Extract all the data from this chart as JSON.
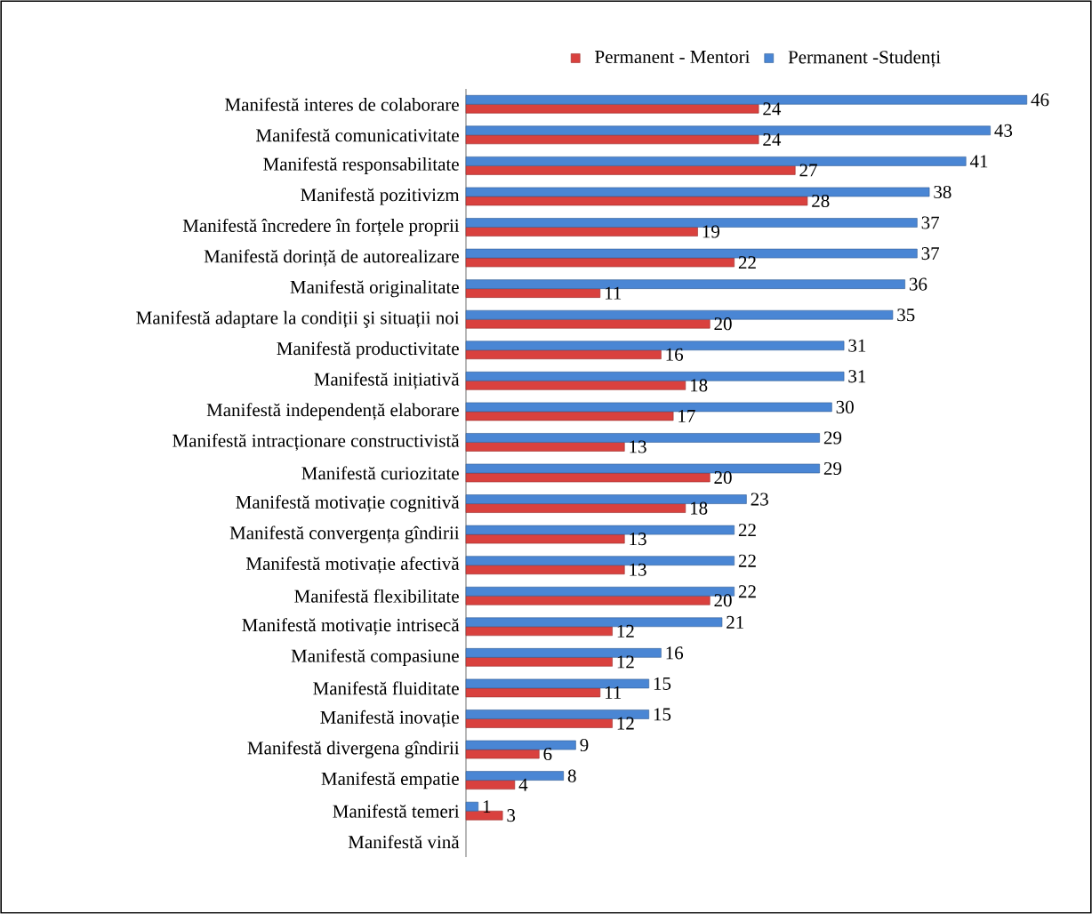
{
  "chart_data": {
    "type": "bar",
    "orientation": "horizontal",
    "data_labels": true,
    "legend": "top",
    "categories": [
      "Manifestă interes de colaborare",
      "Manifestă comunicativitate",
      "Manifestă responsabilitate",
      "Manifestă pozitivizm",
      "Manifestă încredere în forțele proprii",
      "Manifestă dorință de autorealizare",
      "Manifestă originalitate",
      "Manifestă adaptare la condiții şi situații noi",
      "Manifestă productivitate",
      "Manifestă inițiativă",
      "Manifestă independență elaborare",
      "Manifestă intracționare constructivistă",
      "Manifestă curiozitate",
      "Manifestă motivație cognitivă",
      "Manifestă convergența gîndirii",
      "Manifestă motivație afectivă",
      "Manifestă flexibilitate",
      "Manifestă motivație intrisecă",
      "Manifestă compasiune",
      "Manifestă fluiditate",
      "Manifestă inovație",
      "Manifestă divergena gîndirii",
      "Manifestă empatie",
      "Manifestă temeri",
      "Manifestă vină"
    ],
    "series": [
      {
        "name": "Permanent - Mentori",
        "color": "#d9413e",
        "values": [
          24,
          24,
          27,
          28,
          19,
          22,
          11,
          20,
          16,
          18,
          17,
          13,
          20,
          18,
          13,
          13,
          20,
          12,
          12,
          11,
          12,
          6,
          4,
          3,
          null
        ]
      },
      {
        "name": "Permanent -Studenți",
        "color": "#4a86d4",
        "values": [
          46,
          43,
          41,
          38,
          37,
          37,
          36,
          35,
          31,
          31,
          30,
          29,
          29,
          23,
          22,
          22,
          22,
          21,
          16,
          15,
          15,
          9,
          8,
          1,
          null
        ]
      }
    ]
  }
}
